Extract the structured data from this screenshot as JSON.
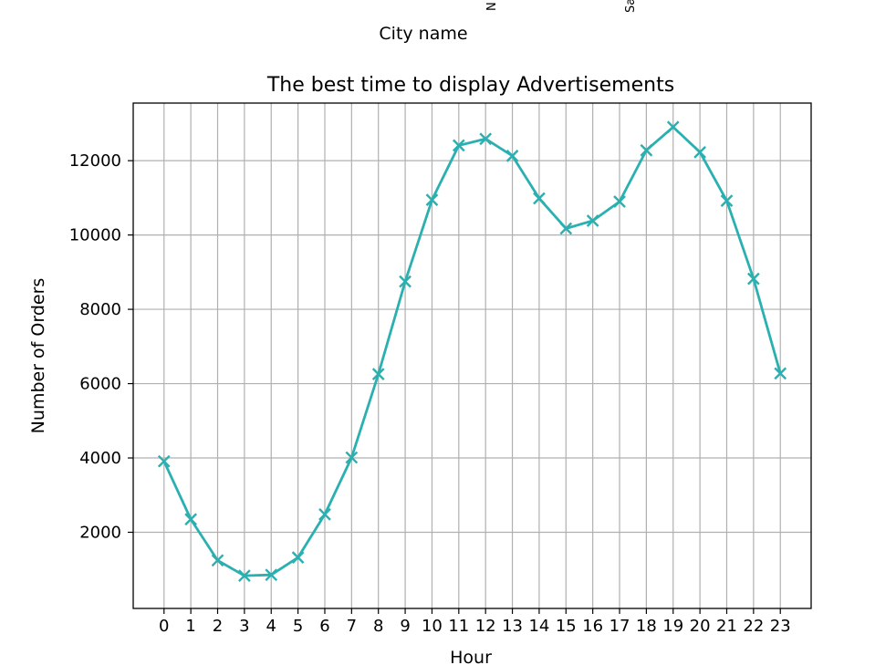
{
  "top_fragment": {
    "xlabel": "City name",
    "rotated_tick_fragments": [
      "N",
      "Sa"
    ]
  },
  "chart_data": {
    "type": "line",
    "title": "The best time to display Advertisements",
    "xlabel": "Hour",
    "ylabel": "Number of Orders",
    "x": [
      0,
      1,
      2,
      3,
      4,
      5,
      6,
      7,
      8,
      9,
      10,
      11,
      12,
      13,
      14,
      15,
      16,
      17,
      18,
      19,
      20,
      21,
      22,
      23
    ],
    "xtick_labels": [
      "0",
      "1",
      "2",
      "3",
      "4",
      "5",
      "6",
      "7",
      "8",
      "9",
      "10",
      "11",
      "12",
      "13",
      "14",
      "15",
      "16",
      "17",
      "18",
      "19",
      "20",
      "21",
      "22",
      "23"
    ],
    "series": [
      {
        "values": [
          3910,
          2350,
          1243,
          831,
          854,
          1321,
          2482,
          4011,
          6256,
          8748,
          10944,
          12411,
          12587,
          12129,
          10984,
          10175,
          10384,
          10899,
          12280,
          12905,
          12228,
          10921,
          8822,
          6275
        ],
        "color": "#2ab0b0",
        "marker": "x"
      }
    ],
    "yticks": [
      2000,
      4000,
      6000,
      8000,
      10000,
      12000
    ],
    "ytick_labels": [
      "2000",
      "4000",
      "6000",
      "8000",
      "10000",
      "12000"
    ],
    "xlim": [
      -1.15,
      24.15
    ],
    "ylim": [
      -50,
      13550
    ],
    "grid": true
  }
}
